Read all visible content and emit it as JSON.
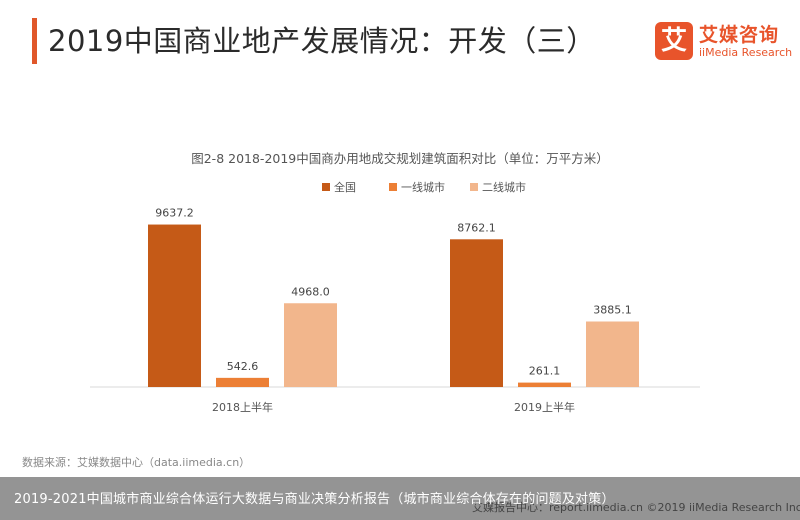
{
  "header": {
    "title": "2019中国商业地产发展情况：开发（三）",
    "accent_color": "#e0572a"
  },
  "logo": {
    "mark": "艾",
    "name": "艾媒咨询",
    "sub": "iiMedia Research"
  },
  "chart_data": {
    "type": "bar",
    "title": "图2-8 2018-2019中国商办用地成交规划建筑面积对比（单位：万平方米）",
    "categories": [
      "2018上半年",
      "2019上半年"
    ],
    "series": [
      {
        "name": "全国",
        "values": [
          9637.2,
          8762.1
        ],
        "color": "#c55a17"
      },
      {
        "name": "一线城市",
        "values": [
          542.6,
          261.1
        ],
        "color": "#ec7f35"
      },
      {
        "name": "二线城市",
        "values": [
          4968.0,
          3885.1
        ],
        "color": "#f2b68c"
      }
    ],
    "value_labels": [
      [
        "9637.2",
        "8762.1"
      ],
      [
        "542.6",
        "261.1"
      ],
      [
        "4968.0",
        "3885.1"
      ]
    ],
    "ylim": [
      0,
      10500
    ],
    "grid": false,
    "legend_position": "top-center"
  },
  "footer": {
    "source_left": "数据来源：艾媒数据中心（data.iimedia.cn）",
    "source_right": "艾媒报告中心：report.iimedia.cn  ©2019  iiMedia Research  Inc",
    "caption": "2019-2021中国城市商业综合体运行大数据与商业决策分析报告（城市商业综合体存在的问题及对策）"
  }
}
